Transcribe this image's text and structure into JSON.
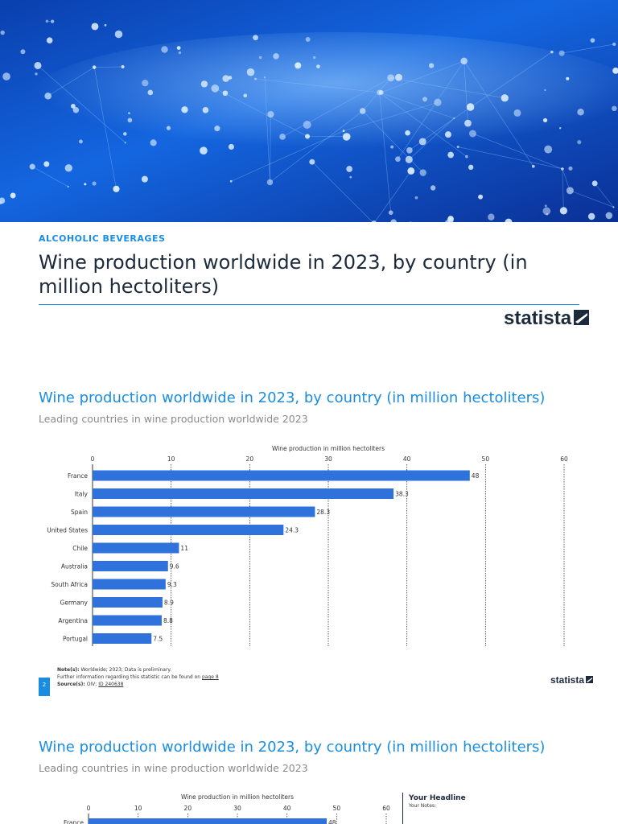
{
  "header": {
    "category": "ALCOHOLIC BEVERAGES",
    "title": "Wine production worldwide in 2023, by country (in million hectoliters)",
    "logo": "statista"
  },
  "chart_data": [
    {
      "type": "bar",
      "orientation": "horizontal",
      "title": "Wine production worldwide in 2023, by country (in million hectoliters)",
      "subtitle": "Leading countries in wine production worldwide 2023",
      "x_label": "Wine production in million hectoliters",
      "categories": [
        "France",
        "Italy",
        "Spain",
        "United States",
        "Chile",
        "Australia",
        "South Africa",
        "Germany",
        "Argentina",
        "Portugal"
      ],
      "values": [
        48,
        38.3,
        28.3,
        24.3,
        11,
        9.6,
        9.3,
        8.9,
        8.8,
        7.5
      ],
      "color": "#2f72dc",
      "xlim": [
        0,
        60
      ],
      "xticks": [
        0,
        10,
        20,
        30,
        40,
        50,
        60
      ],
      "grid": true
    },
    {
      "type": "bar",
      "orientation": "horizontal",
      "title": "Wine production worldwide in 2023, by country (in million hectoliters)",
      "subtitle": "Leading countries in wine production worldwide 2023",
      "x_label": "Wine production in million hectoliters",
      "categories": [
        "France"
      ],
      "values": [
        48
      ],
      "color": "#2f72dc",
      "xlim": [
        0,
        60
      ],
      "xticks": [
        0,
        10,
        20,
        30,
        40,
        50,
        60
      ],
      "grid": true
    }
  ],
  "footer": {
    "note_label": "Note(s):",
    "note": "Worldwide; 2023; Data is preliminary.",
    "further": "Further information regarding this statistic can be found on",
    "further_link": "page 8",
    "source_label": "Source(s):",
    "source": "OIV;",
    "source_link": "ID 240638",
    "page_number": "2",
    "logo": "statista"
  },
  "side_panel": {
    "headline": "Your Headline",
    "notes": "Your Notes:"
  }
}
